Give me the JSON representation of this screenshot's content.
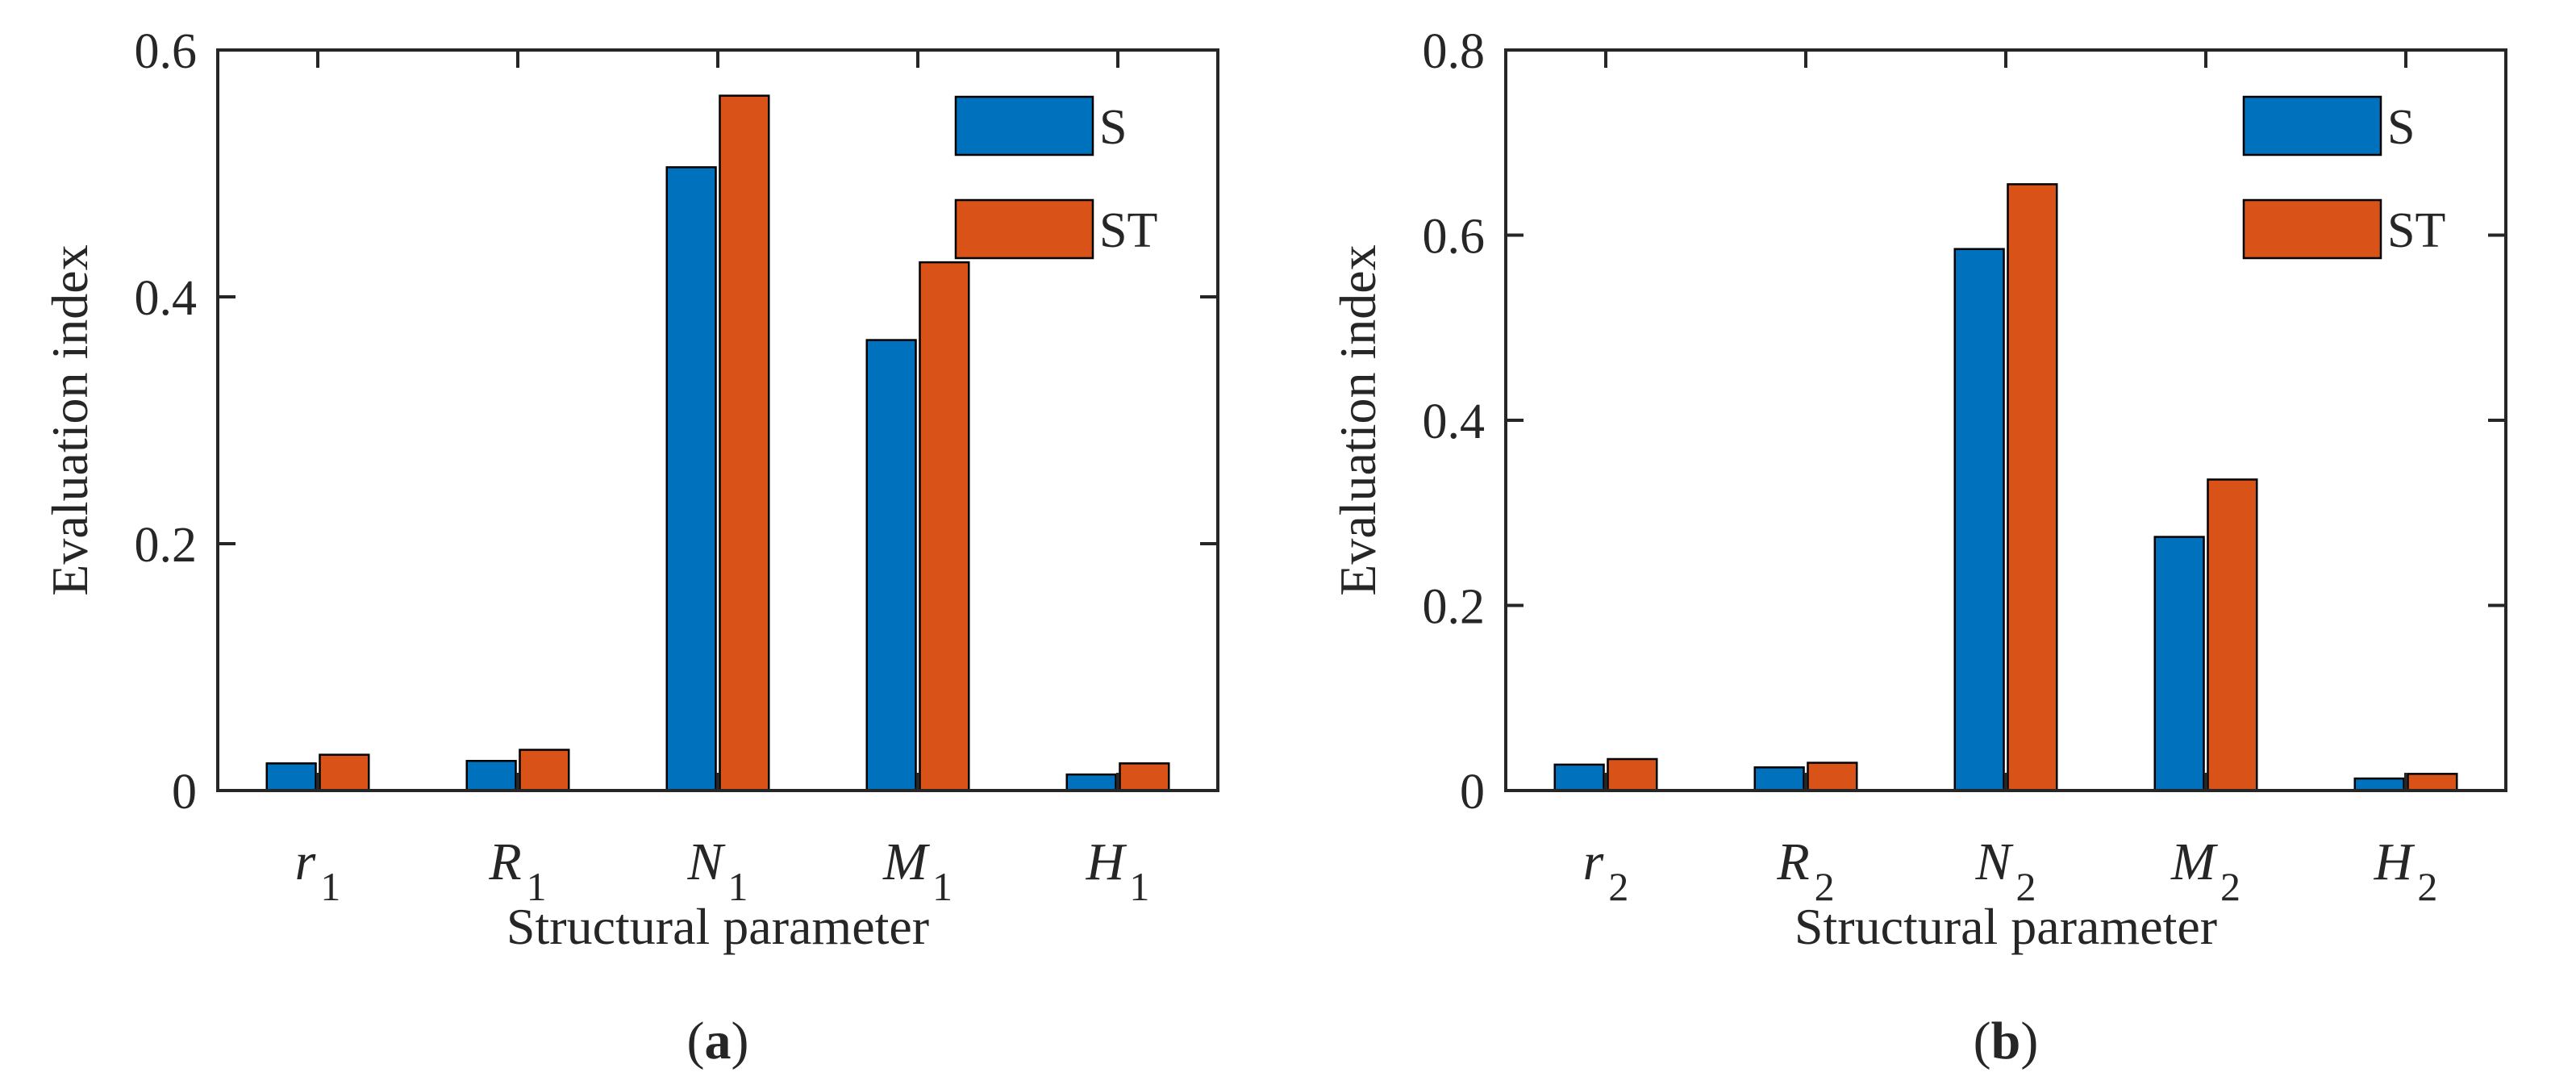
{
  "colors": {
    "S": "#0072BD",
    "ST": "#D95319",
    "axis": "#262626"
  },
  "chart_data": [
    {
      "type": "bar",
      "panel_label": "a",
      "xlabel": "Structural parameter",
      "ylabel": "Evaluation index",
      "ylim": [
        0,
        0.6
      ],
      "yticks": [
        "0",
        "0.2",
        "0.4",
        "0.6"
      ],
      "legend_position": "top-right",
      "categories": [
        {
          "base": "r",
          "sub": "1"
        },
        {
          "base": "R",
          "sub": "1"
        },
        {
          "base": "N",
          "sub": "1"
        },
        {
          "base": "M",
          "sub": "1"
        },
        {
          "base": "H",
          "sub": "1"
        }
      ],
      "series": [
        {
          "name": "S",
          "values": [
            0.022,
            0.024,
            0.505,
            0.365,
            0.013
          ]
        },
        {
          "name": "ST",
          "values": [
            0.029,
            0.033,
            0.563,
            0.428,
            0.022
          ]
        }
      ]
    },
    {
      "type": "bar",
      "panel_label": "b",
      "xlabel": "Structural parameter",
      "ylabel": "Evaluation index",
      "ylim": [
        0,
        0.8
      ],
      "yticks": [
        "0",
        "0.2",
        "0.4",
        "0.6",
        "0.8"
      ],
      "legend_position": "top-right",
      "categories": [
        {
          "base": "r",
          "sub": "2"
        },
        {
          "base": "R",
          "sub": "2"
        },
        {
          "base": "N",
          "sub": "2"
        },
        {
          "base": "M",
          "sub": "2"
        },
        {
          "base": "H",
          "sub": "2"
        }
      ],
      "series": [
        {
          "name": "S",
          "values": [
            0.028,
            0.025,
            0.585,
            0.274,
            0.013
          ]
        },
        {
          "name": "ST",
          "values": [
            0.034,
            0.03,
            0.655,
            0.336,
            0.018
          ]
        }
      ]
    }
  ]
}
